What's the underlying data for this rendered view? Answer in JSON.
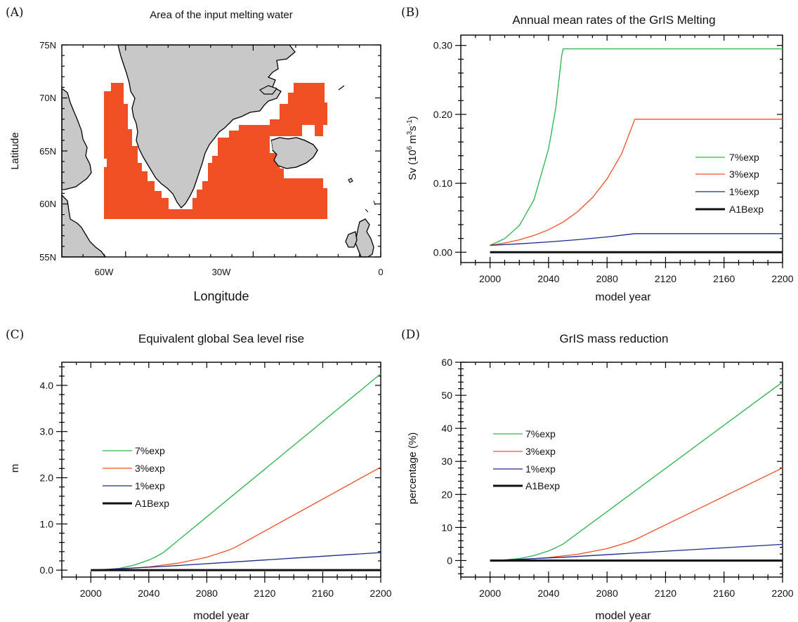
{
  "panels": {
    "a": {
      "letter": "(A)"
    },
    "b": {
      "letter": "(B)"
    },
    "c": {
      "letter": "(C)"
    },
    "d": {
      "letter": "(D)"
    }
  },
  "map": {
    "title": "Area of the input melting water",
    "xlabel": "Longitude",
    "ylabel": "Latitude",
    "xticks": [
      "60W",
      "30W",
      "0"
    ],
    "yticks": [
      "75N",
      "70N",
      "65N",
      "60N",
      "55N"
    ],
    "colors": {
      "land": "#c8c8c8",
      "melt_region": "#f05023"
    }
  },
  "legend": [
    "7%exp",
    "3%exp",
    "1%exp",
    "A1Bexp"
  ],
  "chart_data": [
    {
      "type": "line",
      "title": "Annual mean rates of the GrIS Melting",
      "xlabel": "model year",
      "ylabel": "Sv (10",
      "ylabel_unit": "m",
      "ylabel_tail": "s",
      "sup6": "6",
      "sup3": "3",
      "supm1": "-1",
      "xlim": [
        1980,
        2200
      ],
      "ylim": [
        -0.015,
        0.315
      ],
      "xticks": [
        "2000",
        "2040",
        "2080",
        "2120",
        "2160",
        "2200"
      ],
      "yticks": [
        "0.00",
        "0.10",
        "0.20",
        "0.30"
      ],
      "series": [
        {
          "name": "7%exp",
          "color": "#2ab34a",
          "x": [
            2000,
            2010,
            2020,
            2030,
            2040,
            2045,
            2049,
            2050,
            2200
          ],
          "y": [
            0.01,
            0.0198,
            0.0387,
            0.076,
            0.15,
            0.21,
            0.285,
            0.295,
            0.295
          ]
        },
        {
          "name": "3%exp",
          "color": "#f05023",
          "x": [
            2000,
            2010,
            2020,
            2030,
            2040,
            2050,
            2060,
            2070,
            2080,
            2090,
            2099,
            2200
          ],
          "y": [
            0.01,
            0.0134,
            0.018,
            0.0243,
            0.0326,
            0.0438,
            0.0589,
            0.0792,
            0.1064,
            0.143,
            0.193,
            0.193
          ]
        },
        {
          "name": "1%exp",
          "color": "#1a2a8c",
          "x": [
            2000,
            2020,
            2040,
            2060,
            2080,
            2099,
            2200
          ],
          "y": [
            0.01,
            0.0122,
            0.0149,
            0.0182,
            0.0222,
            0.027,
            0.027
          ]
        },
        {
          "name": "A1Bexp",
          "color": "#111111",
          "x": [
            2000,
            2200
          ],
          "y": [
            0.0,
            0.0
          ]
        }
      ]
    },
    {
      "type": "line",
      "title": "Equivalent global Sea level rise",
      "xlabel": "model year",
      "ylabel": "m",
      "xlim": [
        1980,
        2200
      ],
      "ylim": [
        -0.15,
        4.5
      ],
      "xticks": [
        "2000",
        "2040",
        "2080",
        "2120",
        "2160",
        "2200"
      ],
      "yticks": [
        "0.0",
        "1.0",
        "2.0",
        "3.0",
        "4.0"
      ],
      "series": [
        {
          "name": "7%exp",
          "color": "#2ab34a",
          "x": [
            2000,
            2010,
            2020,
            2030,
            2040,
            2045,
            2050,
            2200
          ],
          "y": [
            0.0,
            0.01,
            0.04,
            0.11,
            0.22,
            0.29,
            0.38,
            4.25
          ]
        },
        {
          "name": "3%exp",
          "color": "#f05023",
          "x": [
            2000,
            2020,
            2040,
            2060,
            2080,
            2095,
            2100,
            2200
          ],
          "y": [
            0.0,
            0.02,
            0.07,
            0.15,
            0.28,
            0.43,
            0.5,
            2.23
          ]
        },
        {
          "name": "1%exp",
          "color": "#1a2a8c",
          "x": [
            2000,
            2050,
            2100,
            2150,
            2200
          ],
          "y": [
            0.0,
            0.08,
            0.18,
            0.28,
            0.38
          ]
        },
        {
          "name": "A1Bexp",
          "color": "#111111",
          "x": [
            2000,
            2200
          ],
          "y": [
            0.0,
            0.0
          ]
        }
      ]
    },
    {
      "type": "line",
      "title": "GrIS mass reduction",
      "xlabel": "model year",
      "ylabel": "percentage (%)",
      "xlim": [
        1980,
        2200
      ],
      "ylim": [
        -5,
        60
      ],
      "xticks": [
        "2000",
        "2040",
        "2080",
        "2120",
        "2160",
        "2200"
      ],
      "yticks": [
        "0",
        "10",
        "20",
        "30",
        "40",
        "50",
        "60"
      ],
      "series": [
        {
          "name": "7%exp",
          "color": "#2ab34a",
          "x": [
            2000,
            2010,
            2020,
            2030,
            2040,
            2045,
            2050,
            2200
          ],
          "y": [
            0.0,
            0.2,
            0.6,
            1.5,
            2.9,
            3.9,
            5.0,
            54.0
          ]
        },
        {
          "name": "3%exp",
          "color": "#f05023",
          "x": [
            2000,
            2020,
            2040,
            2060,
            2080,
            2095,
            2100,
            2200
          ],
          "y": [
            0.0,
            0.3,
            0.9,
            1.9,
            3.6,
            5.6,
            6.5,
            28.0
          ]
        },
        {
          "name": "1%exp",
          "color": "#1a2a8c",
          "x": [
            2000,
            2050,
            2100,
            2150,
            2200
          ],
          "y": [
            0.0,
            1.0,
            2.3,
            3.6,
            4.9
          ]
        },
        {
          "name": "A1Bexp",
          "color": "#111111",
          "x": [
            2000,
            2200
          ],
          "y": [
            0.0,
            0.0
          ]
        }
      ]
    }
  ]
}
